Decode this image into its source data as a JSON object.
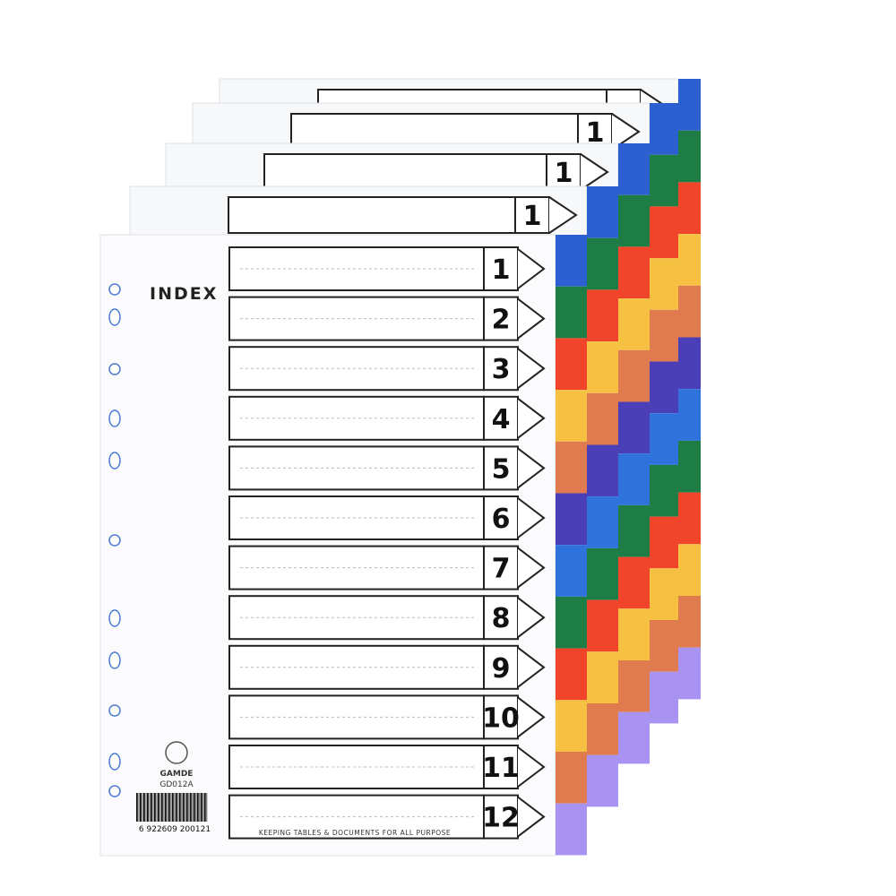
{
  "brand": {
    "name": "GAMDE",
    "model": "GD012A"
  },
  "front_sheet": {
    "heading": "INDEX",
    "entries": [
      "1",
      "2",
      "3",
      "4",
      "5",
      "6",
      "7",
      "8",
      "9",
      "10",
      "11",
      "12"
    ],
    "footer": "KEEPING TABLES & DOCUMENTS FOR ALL PURPOSE",
    "barcode": "6 922609 200121"
  },
  "back_sheets": [
    {
      "first_entry": "1"
    },
    {
      "first_entry": "1"
    },
    {
      "first_entry": "1"
    }
  ]
}
